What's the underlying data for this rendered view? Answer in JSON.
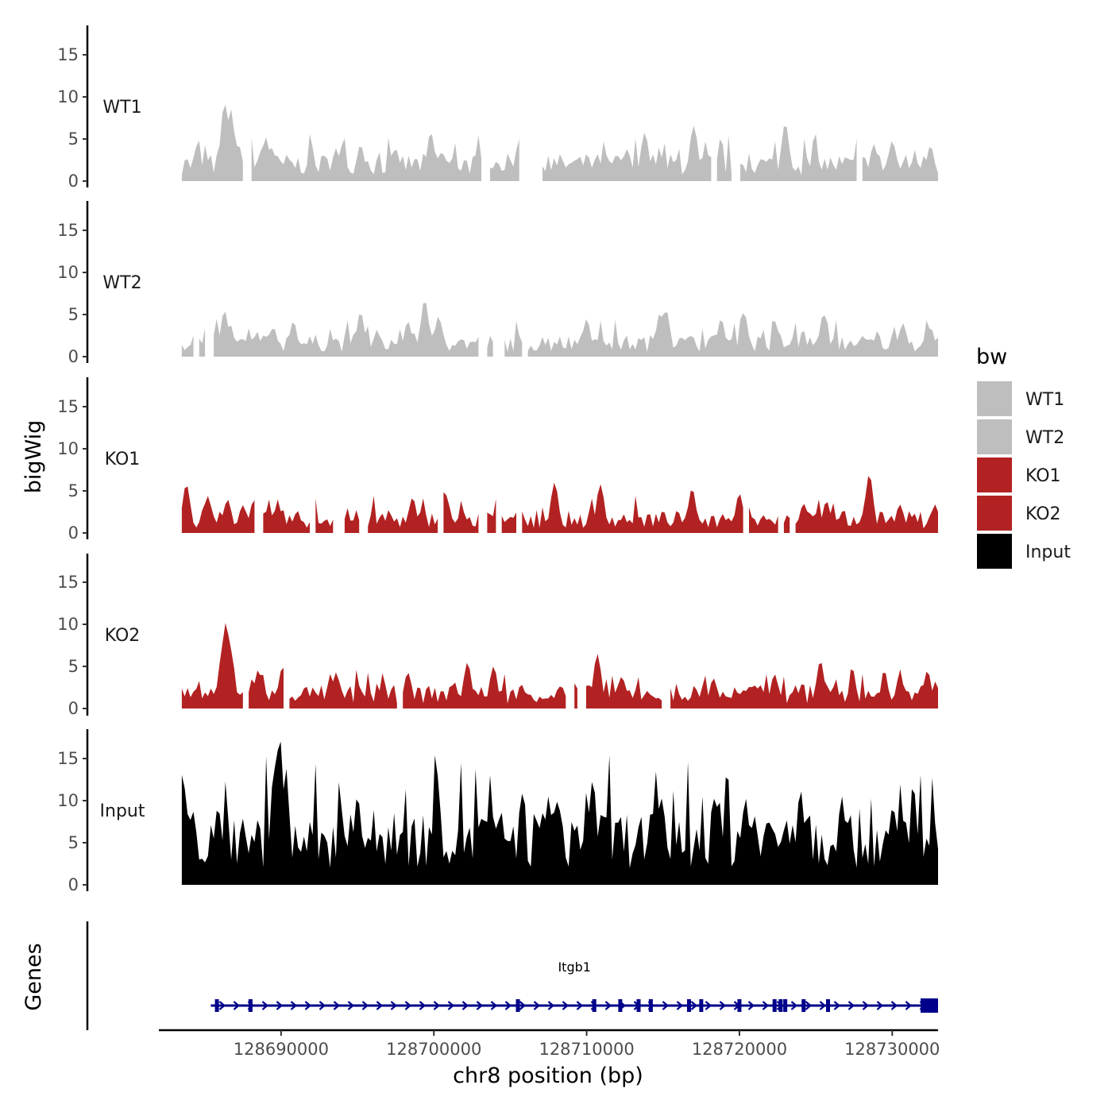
{
  "chart_data": {
    "type": "area",
    "title": "",
    "ylabel": "bigWig",
    "genes_panel_label": "Genes",
    "xlabel": "chr8 position (bp)",
    "xlim": [
      128682000,
      128733000
    ],
    "data_range": [
      128683500,
      128733000
    ],
    "xticks": [
      128690000,
      128700000,
      128710000,
      128720000,
      128730000
    ],
    "xtick_labels": [
      "128690000",
      "128700000",
      "128710000",
      "128720000",
      "128730000"
    ],
    "ylim": [
      0,
      18.5
    ],
    "yticks": [
      0,
      5,
      10,
      15
    ],
    "ytick_labels": [
      "0",
      "5",
      "10",
      "15"
    ],
    "legend": {
      "title": "bw",
      "position": "right",
      "entries": [
        {
          "label": "WT1",
          "color": "#bebebe"
        },
        {
          "label": "WT2",
          "color": "#bebebe"
        },
        {
          "label": "KO1",
          "color": "#b22222"
        },
        {
          "label": "KO2",
          "color": "#b22222"
        },
        {
          "label": "Input",
          "color": "#000000"
        }
      ]
    },
    "series": [
      {
        "name": "WT1",
        "color": "#bebebe",
        "gaps": [
          [
            128687600,
            128688000
          ],
          [
            128703300,
            128703600
          ],
          [
            128705600,
            128706000
          ],
          [
            128706300,
            128707000
          ],
          [
            128718200,
            128718500
          ],
          [
            128719600,
            128719900
          ],
          [
            128727700,
            128728000
          ]
        ],
        "peaks": [
          [
            128684500,
            4.2
          ],
          [
            128686300,
            9.3
          ],
          [
            128686700,
            8.6
          ],
          [
            128687200,
            4.4
          ],
          [
            128689000,
            5.2
          ],
          [
            128693600,
            3.8
          ],
          [
            128695200,
            4.3
          ],
          [
            128697500,
            3.9
          ],
          [
            128699800,
            5.8
          ],
          [
            128705600,
            5.0
          ],
          [
            128713800,
            5.8
          ],
          [
            128717000,
            6.6
          ],
          [
            128723000,
            6.9
          ],
          [
            128728800,
            4.4
          ],
          [
            128730000,
            4.8
          ],
          [
            128732500,
            4.2
          ]
        ],
        "baseline": 2.0
      },
      {
        "name": "WT2",
        "color": "#bebebe",
        "gaps": [
          [
            128684300,
            128684600
          ],
          [
            128685100,
            128685500
          ],
          [
            128703100,
            128703300
          ],
          [
            128704000,
            128704500
          ],
          [
            128705900,
            128706100
          ]
        ],
        "peaks": [
          [
            128686300,
            5.5
          ],
          [
            128689500,
            3.5
          ],
          [
            128690800,
            4.2
          ],
          [
            128695200,
            5.3
          ],
          [
            128698300,
            4.2
          ],
          [
            128699400,
            6.8
          ],
          [
            128700300,
            4.8
          ],
          [
            128710000,
            4.5
          ],
          [
            128714800,
            5.2
          ],
          [
            128715200,
            5.6
          ],
          [
            128718800,
            4.5
          ],
          [
            128720300,
            5.3
          ],
          [
            128725500,
            5.1
          ],
          [
            128730700,
            4.0
          ],
          [
            128732500,
            3.5
          ]
        ],
        "baseline": 1.6
      },
      {
        "name": "KO1",
        "color": "#b22222",
        "gaps": [
          [
            128688400,
            128688700
          ],
          [
            128691900,
            128692200
          ],
          [
            128693500,
            128694000
          ],
          [
            128695300,
            128695600
          ],
          [
            128700400,
            128700600
          ],
          [
            128703100,
            128703300
          ],
          [
            128704100,
            128704300
          ],
          [
            128705400,
            128705600
          ],
          [
            128720400,
            128720600
          ],
          [
            128722700,
            128722900
          ],
          [
            128723300,
            128723600
          ]
        ],
        "peaks": [
          [
            128683800,
            5.8
          ],
          [
            128685200,
            4.4
          ],
          [
            128686500,
            4.0
          ],
          [
            128688200,
            3.8
          ],
          [
            128692500,
            1.2
          ],
          [
            128698600,
            4.2
          ],
          [
            128700700,
            5.0
          ],
          [
            128707900,
            6.0
          ],
          [
            128710900,
            5.8
          ],
          [
            128716900,
            5.3
          ],
          [
            128720000,
            4.7
          ],
          [
            128724200,
            3.5
          ],
          [
            128725700,
            3.8
          ],
          [
            128728500,
            7.0
          ],
          [
            128730500,
            3.4
          ],
          [
            128732800,
            3.4
          ]
        ],
        "baseline": 1.6
      },
      {
        "name": "KO2",
        "color": "#b22222",
        "gaps": [
          [
            128687600,
            128687800
          ],
          [
            128690300,
            128690500
          ],
          [
            128697600,
            128697900
          ],
          [
            128708800,
            128709100
          ],
          [
            128709500,
            128709800
          ],
          [
            128715000,
            128715300
          ]
        ],
        "peaks": [
          [
            128686200,
            7.8
          ],
          [
            128686400,
            10.3
          ],
          [
            128686700,
            7.0
          ],
          [
            128688500,
            4.6
          ],
          [
            128690100,
            5.0
          ],
          [
            128693600,
            4.3
          ],
          [
            128698300,
            4.3
          ],
          [
            128702200,
            5.5
          ],
          [
            128703900,
            5.0
          ],
          [
            128710700,
            6.5
          ],
          [
            128712300,
            3.8
          ],
          [
            128718300,
            3.6
          ],
          [
            128722300,
            4.1
          ],
          [
            128725300,
            5.7
          ],
          [
            128730500,
            4.0
          ],
          [
            128732300,
            4.5
          ]
        ],
        "baseline": 1.7
      },
      {
        "name": "Input",
        "color": "#000000",
        "gaps": [],
        "peaks": [
          [
            128683550,
            13.3
          ],
          [
            128689700,
            15.2
          ],
          [
            128689900,
            17.7
          ],
          [
            128690300,
            13.0
          ],
          [
            128695000,
            10.6
          ],
          [
            128700200,
            13.2
          ],
          [
            128707500,
            10.5
          ],
          [
            128710400,
            12.5
          ],
          [
            128718400,
            10.5
          ],
          [
            128720400,
            10.3
          ],
          [
            128724000,
            11.3
          ],
          [
            128726700,
            10.5
          ],
          [
            128730000,
            9.0
          ],
          [
            128732700,
            8.0
          ]
        ],
        "baseline": 5.5
      }
    ],
    "genes": [
      {
        "name": "Itgb1",
        "strand": "+",
        "start": 128685400,
        "end": 128733000,
        "exons": [
          128685800,
          128688000,
          128705500,
          128710500,
          128712200,
          128713400,
          128714200,
          128716700,
          128717500,
          128720000,
          128722300,
          128722700,
          128723000,
          128724200,
          128725800,
          128732200,
          128732500
        ]
      }
    ]
  }
}
